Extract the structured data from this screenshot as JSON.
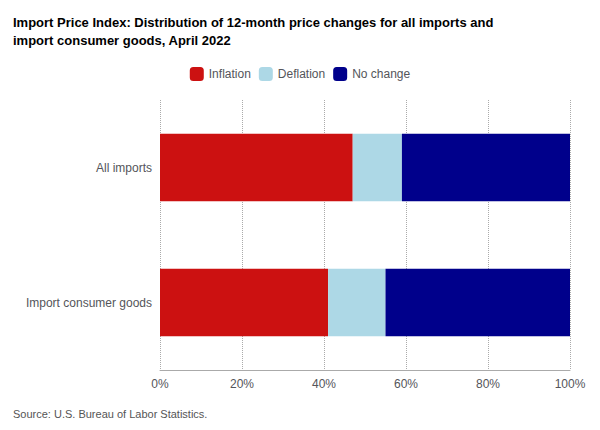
{
  "chart_data": {
    "type": "bar",
    "orientation": "horizontal",
    "stacked": true,
    "title": "Import Price Index: Distribution of 12-month price changes for all imports and\nimport consumer goods, April 2022",
    "source": "Source: U.S. Bureau of Labor Statistics.",
    "categories": [
      "All imports",
      "Import consumer goods"
    ],
    "series": [
      {
        "name": "Inflation",
        "color": "#cc1111",
        "values": [
          47,
          41
        ]
      },
      {
        "name": "Deflation",
        "color": "#add8e6",
        "values": [
          12,
          14
        ]
      },
      {
        "name": "No change",
        "color": "#00008b",
        "values": [
          41,
          45
        ]
      }
    ],
    "xlim": [
      0,
      100
    ],
    "xticks": [
      {
        "value": 0,
        "label": "0%"
      },
      {
        "value": 20,
        "label": "20%"
      },
      {
        "value": 40,
        "label": "40%"
      },
      {
        "value": 60,
        "label": "60%"
      },
      {
        "value": 80,
        "label": "80%"
      },
      {
        "value": 100,
        "label": "100%"
      }
    ],
    "grid": true,
    "legend": "top"
  }
}
